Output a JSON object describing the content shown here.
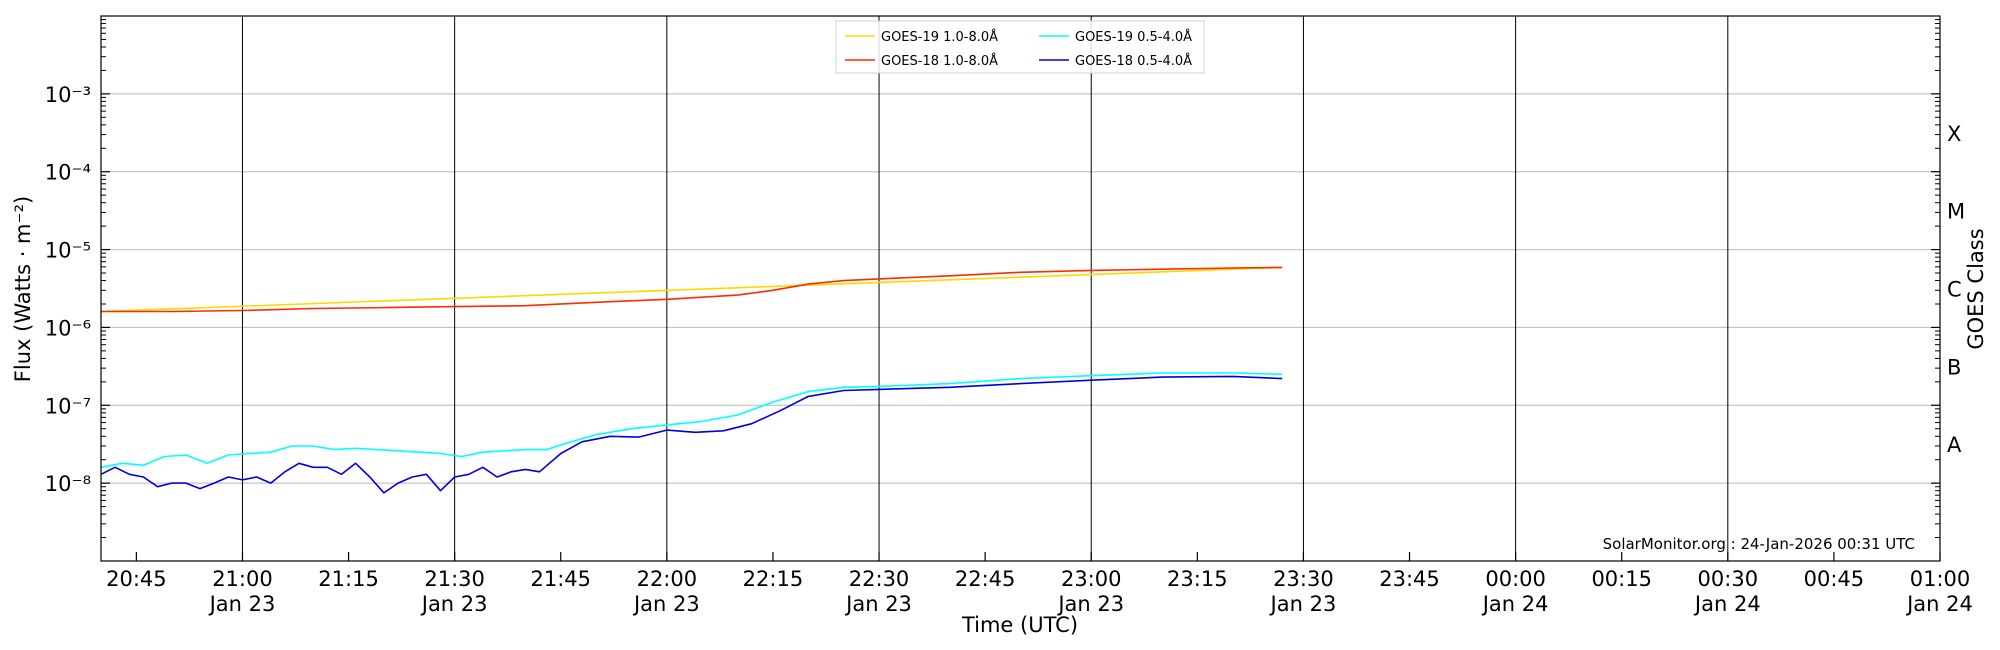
{
  "chart_data": {
    "type": "line",
    "title": "",
    "xlabel": "Time (UTC)",
    "ylabel": "Flux (Watts · m⁻²)",
    "y2label": "GOES Class",
    "yscale": "log",
    "ylim": [
      1e-09,
      0.01
    ],
    "xlim": [
      "2026-01-23 20:40",
      "2026-01-24 01:00"
    ],
    "grid": "horizontal at decades, vertical at half-hours",
    "legend_position": "top-center",
    "credit": "SolarMonitor.org : 24-Jan-2026 00:31 UTC",
    "y_ticks": [
      {
        "value": 1e-08,
        "label": "10⁻⁸"
      },
      {
        "value": 1e-07,
        "label": "10⁻⁷"
      },
      {
        "value": 1e-06,
        "label": "10⁻⁶"
      },
      {
        "value": 1e-05,
        "label": "10⁻⁵"
      },
      {
        "value": 0.0001,
        "label": "10⁻⁴"
      },
      {
        "value": 0.001,
        "label": "10⁻³"
      }
    ],
    "goes_classes": [
      {
        "label": "A",
        "value": 3.16e-08
      },
      {
        "label": "B",
        "value": 3.16e-07
      },
      {
        "label": "C",
        "value": 3.16e-06
      },
      {
        "label": "M",
        "value": 3.16e-05
      },
      {
        "label": "X",
        "value": 0.000316
      }
    ],
    "x_ticks": [
      {
        "time": "2026-01-23 20:45",
        "label": "20:45",
        "date": ""
      },
      {
        "time": "2026-01-23 21:00",
        "label": "21:00",
        "date": "Jan 23"
      },
      {
        "time": "2026-01-23 21:15",
        "label": "21:15",
        "date": ""
      },
      {
        "time": "2026-01-23 21:30",
        "label": "21:30",
        "date": "Jan 23"
      },
      {
        "time": "2026-01-23 21:45",
        "label": "21:45",
        "date": ""
      },
      {
        "time": "2026-01-23 22:00",
        "label": "22:00",
        "date": "Jan 23"
      },
      {
        "time": "2026-01-23 22:15",
        "label": "22:15",
        "date": ""
      },
      {
        "time": "2026-01-23 22:30",
        "label": "22:30",
        "date": "Jan 23"
      },
      {
        "time": "2026-01-23 22:45",
        "label": "22:45",
        "date": ""
      },
      {
        "time": "2026-01-23 23:00",
        "label": "23:00",
        "date": "Jan 23"
      },
      {
        "time": "2026-01-23 23:15",
        "label": "23:15",
        "date": ""
      },
      {
        "time": "2026-01-23 23:30",
        "label": "23:30",
        "date": "Jan 23"
      },
      {
        "time": "2026-01-23 23:45",
        "label": "23:45",
        "date": ""
      },
      {
        "time": "2026-01-24 00:00",
        "label": "00:00",
        "date": "Jan 24"
      },
      {
        "time": "2026-01-24 00:15",
        "label": "00:15",
        "date": ""
      },
      {
        "time": "2026-01-24 00:30",
        "label": "00:30",
        "date": "Jan 24"
      },
      {
        "time": "2026-01-24 00:45",
        "label": "00:45",
        "date": ""
      },
      {
        "time": "2026-01-24 01:00",
        "label": "01:00",
        "date": "Jan 24"
      }
    ],
    "series": [
      {
        "name": "GOES-19 1.0-8.0Å",
        "color": "#ffd700",
        "x": [
          "2026-01-23 20:40",
          "2026-01-23 23:27"
        ],
        "values": [
          1.6e-06,
          5.9e-06
        ]
      },
      {
        "name": "GOES-18 1.0-8.0Å",
        "color": "#ff2a00",
        "x": [
          "2026-01-23 20:40",
          "2026-01-23 20:50",
          "2026-01-23 21:00",
          "2026-01-23 21:10",
          "2026-01-23 21:20",
          "2026-01-23 21:30",
          "2026-01-23 21:40",
          "2026-01-23 21:50",
          "2026-01-23 22:00",
          "2026-01-23 22:10",
          "2026-01-23 22:15",
          "2026-01-23 22:20",
          "2026-01-23 22:25",
          "2026-01-23 22:30",
          "2026-01-23 22:40",
          "2026-01-23 22:50",
          "2026-01-23 23:00",
          "2026-01-23 23:10",
          "2026-01-23 23:20",
          "2026-01-23 23:27"
        ],
        "values": [
          1.6e-06,
          1.6e-06,
          1.65e-06,
          1.75e-06,
          1.8e-06,
          1.85e-06,
          1.9e-06,
          2.1e-06,
          2.3e-06,
          2.6e-06,
          3e-06,
          3.6e-06,
          4e-06,
          4.2e-06,
          4.6e-06,
          5.1e-06,
          5.4e-06,
          5.6e-06,
          5.8e-06,
          5.9e-06
        ]
      },
      {
        "name": "GOES-19 0.5-4.0Å",
        "color": "#00ffff",
        "x": [
          "2026-01-23 20:40",
          "2026-01-23 20:43",
          "2026-01-23 20:46",
          "2026-01-23 20:49",
          "2026-01-23 20:52",
          "2026-01-23 20:55",
          "2026-01-23 20:58",
          "2026-01-23 21:01",
          "2026-01-23 21:04",
          "2026-01-23 21:07",
          "2026-01-23 21:10",
          "2026-01-23 21:13",
          "2026-01-23 21:16",
          "2026-01-23 21:19",
          "2026-01-23 21:22",
          "2026-01-23 21:25",
          "2026-01-23 21:28",
          "2026-01-23 21:31",
          "2026-01-23 21:34",
          "2026-01-23 21:37",
          "2026-01-23 21:40",
          "2026-01-23 21:43",
          "2026-01-23 21:46",
          "2026-01-23 21:50",
          "2026-01-23 21:55",
          "2026-01-23 22:00",
          "2026-01-23 22:05",
          "2026-01-23 22:10",
          "2026-01-23 22:15",
          "2026-01-23 22:20",
          "2026-01-23 22:25",
          "2026-01-23 22:30",
          "2026-01-23 22:40",
          "2026-01-23 22:50",
          "2026-01-23 23:00",
          "2026-01-23 23:10",
          "2026-01-23 23:20",
          "2026-01-23 23:27"
        ],
        "values": [
          1.6e-08,
          1.8e-08,
          1.7e-08,
          2.2e-08,
          2.3e-08,
          1.8e-08,
          2.3e-08,
          2.4e-08,
          2.5e-08,
          3e-08,
          3e-08,
          2.7e-08,
          2.8e-08,
          2.7e-08,
          2.6e-08,
          2.5e-08,
          2.4e-08,
          2.2e-08,
          2.5e-08,
          2.6e-08,
          2.7e-08,
          2.7e-08,
          3.3e-08,
          4.2e-08,
          5e-08,
          5.6e-08,
          6.2e-08,
          7.5e-08,
          1.1e-07,
          1.5e-07,
          1.7e-07,
          1.75e-07,
          1.9e-07,
          2.2e-07,
          2.4e-07,
          2.6e-07,
          2.6e-07,
          2.5e-07
        ]
      },
      {
        "name": "GOES-18 0.5-4.0Å",
        "color": "#0000e0",
        "x": [
          "2026-01-23 20:40",
          "2026-01-23 20:42",
          "2026-01-23 20:44",
          "2026-01-23 20:46",
          "2026-01-23 20:48",
          "2026-01-23 20:50",
          "2026-01-23 20:52",
          "2026-01-23 20:54",
          "2026-01-23 20:56",
          "2026-01-23 20:58",
          "2026-01-23 21:00",
          "2026-01-23 21:02",
          "2026-01-23 21:04",
          "2026-01-23 21:06",
          "2026-01-23 21:08",
          "2026-01-23 21:10",
          "2026-01-23 21:12",
          "2026-01-23 21:14",
          "2026-01-23 21:16",
          "2026-01-23 21:18",
          "2026-01-23 21:20",
          "2026-01-23 21:22",
          "2026-01-23 21:24",
          "2026-01-23 21:26",
          "2026-01-23 21:28",
          "2026-01-23 21:30",
          "2026-01-23 21:32",
          "2026-01-23 21:34",
          "2026-01-23 21:36",
          "2026-01-23 21:38",
          "2026-01-23 21:40",
          "2026-01-23 21:42",
          "2026-01-23 21:45",
          "2026-01-23 21:48",
          "2026-01-23 21:52",
          "2026-01-23 21:56",
          "2026-01-23 22:00",
          "2026-01-23 22:04",
          "2026-01-23 22:08",
          "2026-01-23 22:12",
          "2026-01-23 22:16",
          "2026-01-23 22:20",
          "2026-01-23 22:25",
          "2026-01-23 22:30",
          "2026-01-23 22:40",
          "2026-01-23 22:50",
          "2026-01-23 23:00",
          "2026-01-23 23:10",
          "2026-01-23 23:20",
          "2026-01-23 23:27"
        ],
        "values": [
          1.3e-08,
          1.6e-08,
          1.3e-08,
          1.2e-08,
          9e-09,
          1e-08,
          1e-08,
          8.5e-09,
          1e-08,
          1.2e-08,
          1.1e-08,
          1.2e-08,
          1e-08,
          1.4e-08,
          1.8e-08,
          1.6e-08,
          1.6e-08,
          1.3e-08,
          1.8e-08,
          1.2e-08,
          7.5e-09,
          1e-08,
          1.2e-08,
          1.3e-08,
          8e-09,
          1.2e-08,
          1.3e-08,
          1.6e-08,
          1.2e-08,
          1.4e-08,
          1.5e-08,
          1.4e-08,
          2.4e-08,
          3.4e-08,
          4e-08,
          3.9e-08,
          4.8e-08,
          4.5e-08,
          4.7e-08,
          5.8e-08,
          8.5e-08,
          1.3e-07,
          1.55e-07,
          1.6e-07,
          1.7e-07,
          1.9e-07,
          2.1e-07,
          2.3e-07,
          2.35e-07,
          2.2e-07
        ]
      }
    ]
  }
}
